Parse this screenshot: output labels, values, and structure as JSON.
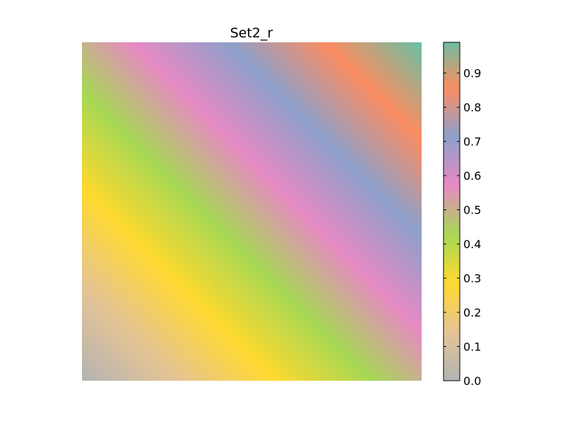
{
  "chart_data": {
    "type": "heatmap",
    "title": "Set2_r",
    "xlabel": "",
    "ylabel": "",
    "axes_visible": false,
    "grid": false,
    "value_range": [
      0.0,
      1.0
    ],
    "gradient_direction": "diagonal, 0.0 at bottom-left increasing to 1.0 at top-right",
    "colormap": {
      "name": "Set2_r",
      "stops": [
        {
          "value": 0.0,
          "color": "#b3b3b3"
        },
        {
          "value": 0.142857,
          "color": "#e5c494"
        },
        {
          "value": 0.285714,
          "color": "#ffd92f"
        },
        {
          "value": 0.428571,
          "color": "#a6d854"
        },
        {
          "value": 0.571429,
          "color": "#e78ac3"
        },
        {
          "value": 0.714286,
          "color": "#8da0cb"
        },
        {
          "value": 0.857143,
          "color": "#fc8d62"
        },
        {
          "value": 1.0,
          "color": "#66c2a5"
        }
      ]
    },
    "colorbar": {
      "placement": "right",
      "range": [
        0.0,
        0.99
      ],
      "ticks": [
        0.0,
        0.1,
        0.2,
        0.3,
        0.4,
        0.5,
        0.6,
        0.7,
        0.8,
        0.9
      ],
      "tick_labels": [
        "0.0",
        "0.1",
        "0.2",
        "0.3",
        "0.4",
        "0.5",
        "0.6",
        "0.7",
        "0.8",
        "0.9"
      ]
    }
  }
}
